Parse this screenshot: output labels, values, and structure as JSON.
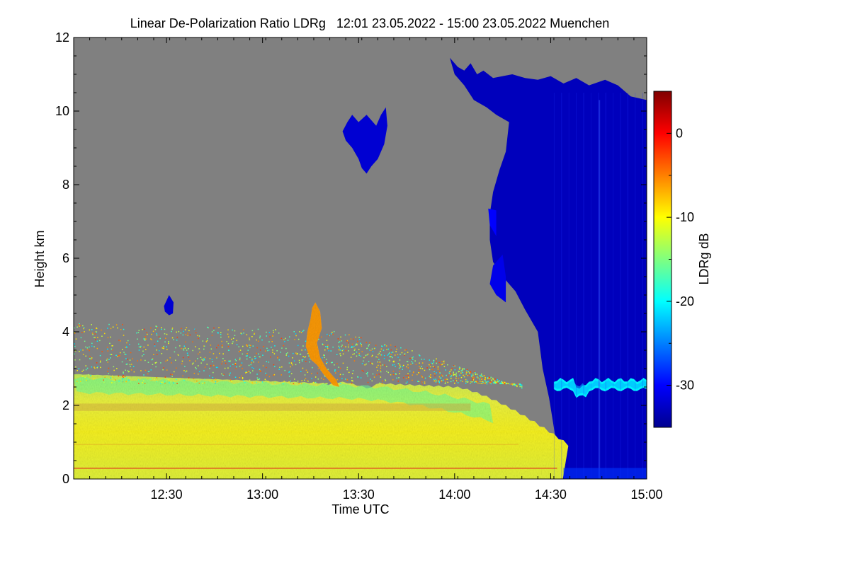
{
  "chart_data": {
    "type": "heatmap",
    "title": "Linear De-Polarization Ratio LDRg   12:01 23.05.2022 - 15:00 23.05.2022 Muenchen",
    "xlabel": "Time UTC",
    "ylabel": "Height km",
    "x_range": [
      "12:01",
      "15:00"
    ],
    "x_range_minutes": [
      721,
      900
    ],
    "x_ticks": [
      {
        "label": "12:30",
        "minute": 750
      },
      {
        "label": "13:00",
        "minute": 780
      },
      {
        "label": "13:30",
        "minute": 810
      },
      {
        "label": "14:00",
        "minute": 840
      },
      {
        "label": "14:30",
        "minute": 870
      },
      {
        "label": "15:00",
        "minute": 900
      }
    ],
    "y_range": [
      0,
      12
    ],
    "y_ticks": [
      0,
      2,
      4,
      6,
      8,
      10,
      12
    ],
    "colorbar": {
      "label": "LDRg dB",
      "range": [
        -35,
        5
      ],
      "ticks": [
        0,
        -10,
        -20,
        -30
      ],
      "colormap": "jet"
    },
    "no_data_color": "#808080",
    "features": [
      {
        "name": "boundary-layer",
        "minute_start": 721,
        "minute_end": 875,
        "height_min": 0,
        "height_max": 3.0,
        "ldr_db": -11
      },
      {
        "name": "elevated-aerosol-plume",
        "minute": 796,
        "height_min": 2.5,
        "height_max": 4.8,
        "ldr_db": -6
      },
      {
        "name": "cirrus-cloud-10km",
        "minute_start": 805,
        "minute_end": 822,
        "height_min": 8.3,
        "height_max": 10.1,
        "ldr_db": -32
      },
      {
        "name": "small-cloud-4.5km",
        "minute": 751,
        "height_min": 4.4,
        "height_max": 5.0,
        "ldr_db": -32
      },
      {
        "name": "frontal-cloud",
        "minute_start": 838,
        "minute_end": 900,
        "height_min": 0,
        "height_max": 11.5,
        "ldr_db": -33
      },
      {
        "name": "melting-layer-bright-band",
        "minute_start": 871,
        "minute_end": 900,
        "height": 2.55,
        "ldr_db": -20
      }
    ]
  }
}
